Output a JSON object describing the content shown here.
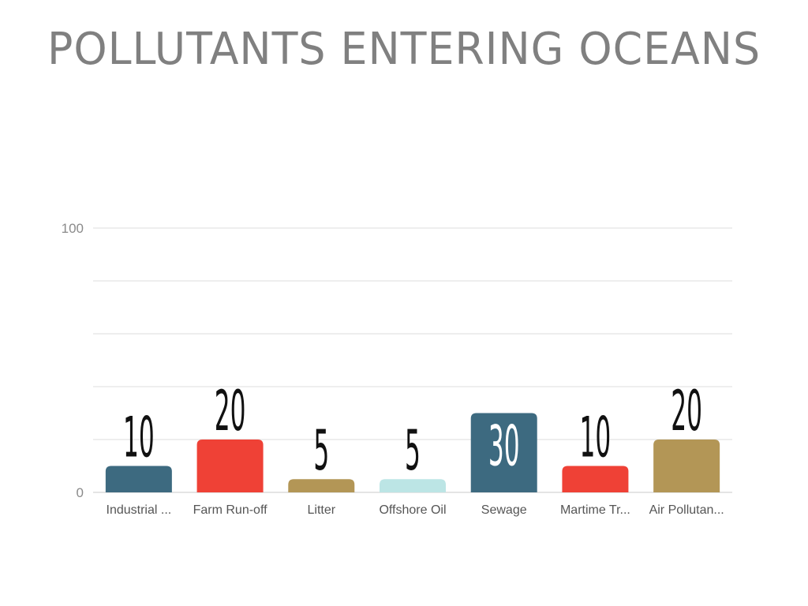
{
  "title": "POLLUTANTS ENTERING OCEANS",
  "chart_data": {
    "type": "bar",
    "title": "POLLUTANTS ENTERING OCEANS",
    "categories": [
      "Industrial ...",
      "Farm Run-off",
      "Litter",
      "Offshore Oil",
      "Sewage",
      "Martime Tr...",
      "Air Pollutan..."
    ],
    "values": [
      10,
      20,
      5,
      5,
      30,
      10,
      20
    ],
    "ylim": [
      0,
      100
    ],
    "yticks": [
      "0",
      "100"
    ],
    "xlabel": "",
    "ylabel": "",
    "grid": true,
    "legend": "none",
    "colors": [
      "#3d6a80",
      "#ef4136",
      "#b39656",
      "#bce5e5",
      "#3d6a80",
      "#ef4136",
      "#b39656"
    ],
    "label_colors": [
      "#111111",
      "#111111",
      "#111111",
      "#111111",
      "#ffffff",
      "#111111",
      "#111111"
    ],
    "grid_color": "#dcdcdc"
  }
}
